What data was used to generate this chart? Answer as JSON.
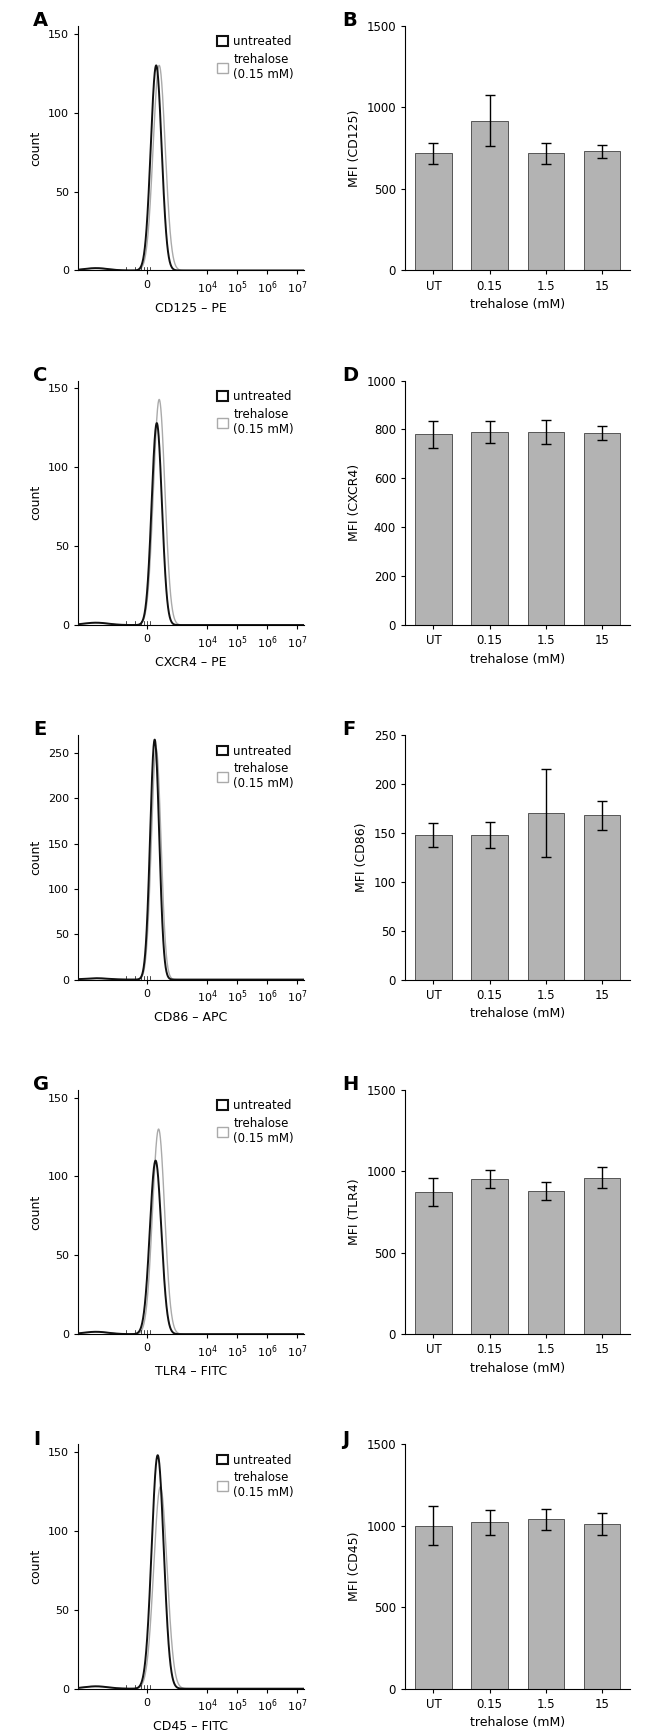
{
  "flow_panels": {
    "A": {
      "xlabel": "CD125 – PE",
      "ylabel": "count",
      "ylim": [
        0,
        155
      ],
      "yticks": [
        0,
        50,
        100,
        150
      ],
      "peak_black": 130,
      "peak_gray": 130,
      "mu_black": 2.3,
      "mu_gray": 2.4,
      "sigma_black": 0.18,
      "sigma_gray": 0.2
    },
    "C": {
      "xlabel": "CXCR4 – PE",
      "ylabel": "count",
      "ylim": [
        0,
        155
      ],
      "yticks": [
        0,
        50,
        100,
        150
      ],
      "peak_black": 128,
      "peak_gray": 143,
      "mu_black": 2.32,
      "mu_gray": 2.4,
      "sigma_black": 0.17,
      "sigma_gray": 0.19
    },
    "E": {
      "xlabel": "CD86 – APC",
      "ylabel": "count",
      "ylim": [
        0,
        270
      ],
      "yticks": [
        0,
        50,
        100,
        150,
        200,
        250
      ],
      "peak_black": 265,
      "peak_gray": 255,
      "mu_black": 2.25,
      "mu_gray": 2.3,
      "sigma_black": 0.15,
      "sigma_gray": 0.16
    },
    "G": {
      "xlabel": "TLR4 – FITC",
      "ylabel": "count",
      "ylim": [
        0,
        155
      ],
      "yticks": [
        0,
        50,
        100,
        150
      ],
      "peak_black": 110,
      "peak_gray": 130,
      "mu_black": 2.28,
      "mu_gray": 2.38,
      "sigma_black": 0.19,
      "sigma_gray": 0.2
    },
    "I": {
      "xlabel": "CD45 – FITC",
      "ylabel": "count",
      "ylim": [
        0,
        155
      ],
      "yticks": [
        0,
        50,
        100,
        150
      ],
      "peak_black": 148,
      "peak_gray": 128,
      "mu_black": 2.35,
      "mu_gray": 2.44,
      "sigma_black": 0.2,
      "sigma_gray": 0.22
    }
  },
  "bar_panels": {
    "B": {
      "ylabel": "MFI (CD125)",
      "ylim": [
        0,
        1500
      ],
      "yticks": [
        0,
        500,
        1000,
        1500
      ],
      "values": [
        720,
        920,
        720,
        730
      ],
      "errors": [
        65,
        155,
        65,
        40
      ]
    },
    "D": {
      "ylabel": "MFI (CXCR4)",
      "ylim": [
        0,
        1000
      ],
      "yticks": [
        0,
        200,
        400,
        600,
        800,
        1000
      ],
      "values": [
        780,
        790,
        790,
        785
      ],
      "errors": [
        55,
        45,
        50,
        30
      ]
    },
    "F": {
      "ylabel": "MFI (CD86)",
      "ylim": [
        0,
        250
      ],
      "yticks": [
        0,
        50,
        100,
        150,
        200,
        250
      ],
      "values": [
        148,
        148,
        170,
        168
      ],
      "errors": [
        12,
        13,
        45,
        15
      ]
    },
    "H": {
      "ylabel": "MFI (TLR4)",
      "ylim": [
        0,
        1500
      ],
      "yticks": [
        0,
        500,
        1000,
        1500
      ],
      "values": [
        870,
        950,
        880,
        960
      ],
      "errors": [
        85,
        55,
        55,
        65
      ]
    },
    "J": {
      "ylabel": "MFI (CD45)",
      "ylim": [
        0,
        1500
      ],
      "yticks": [
        0,
        500,
        1000,
        1500
      ],
      "values": [
        1000,
        1020,
        1040,
        1010
      ],
      "errors": [
        120,
        75,
        65,
        70
      ]
    }
  },
  "bar_categories": [
    "UT",
    "0.15",
    "1.5",
    "15"
  ],
  "bar_color": "#b3b3b3",
  "flow_black_color": "#111111",
  "flow_gray_color": "#aaaaaa",
  "xlabel_trehalose": "trehalose (mM)",
  "legend_untreated": "untreated",
  "legend_trehalose": "trehalose\n(0.15 mM)"
}
